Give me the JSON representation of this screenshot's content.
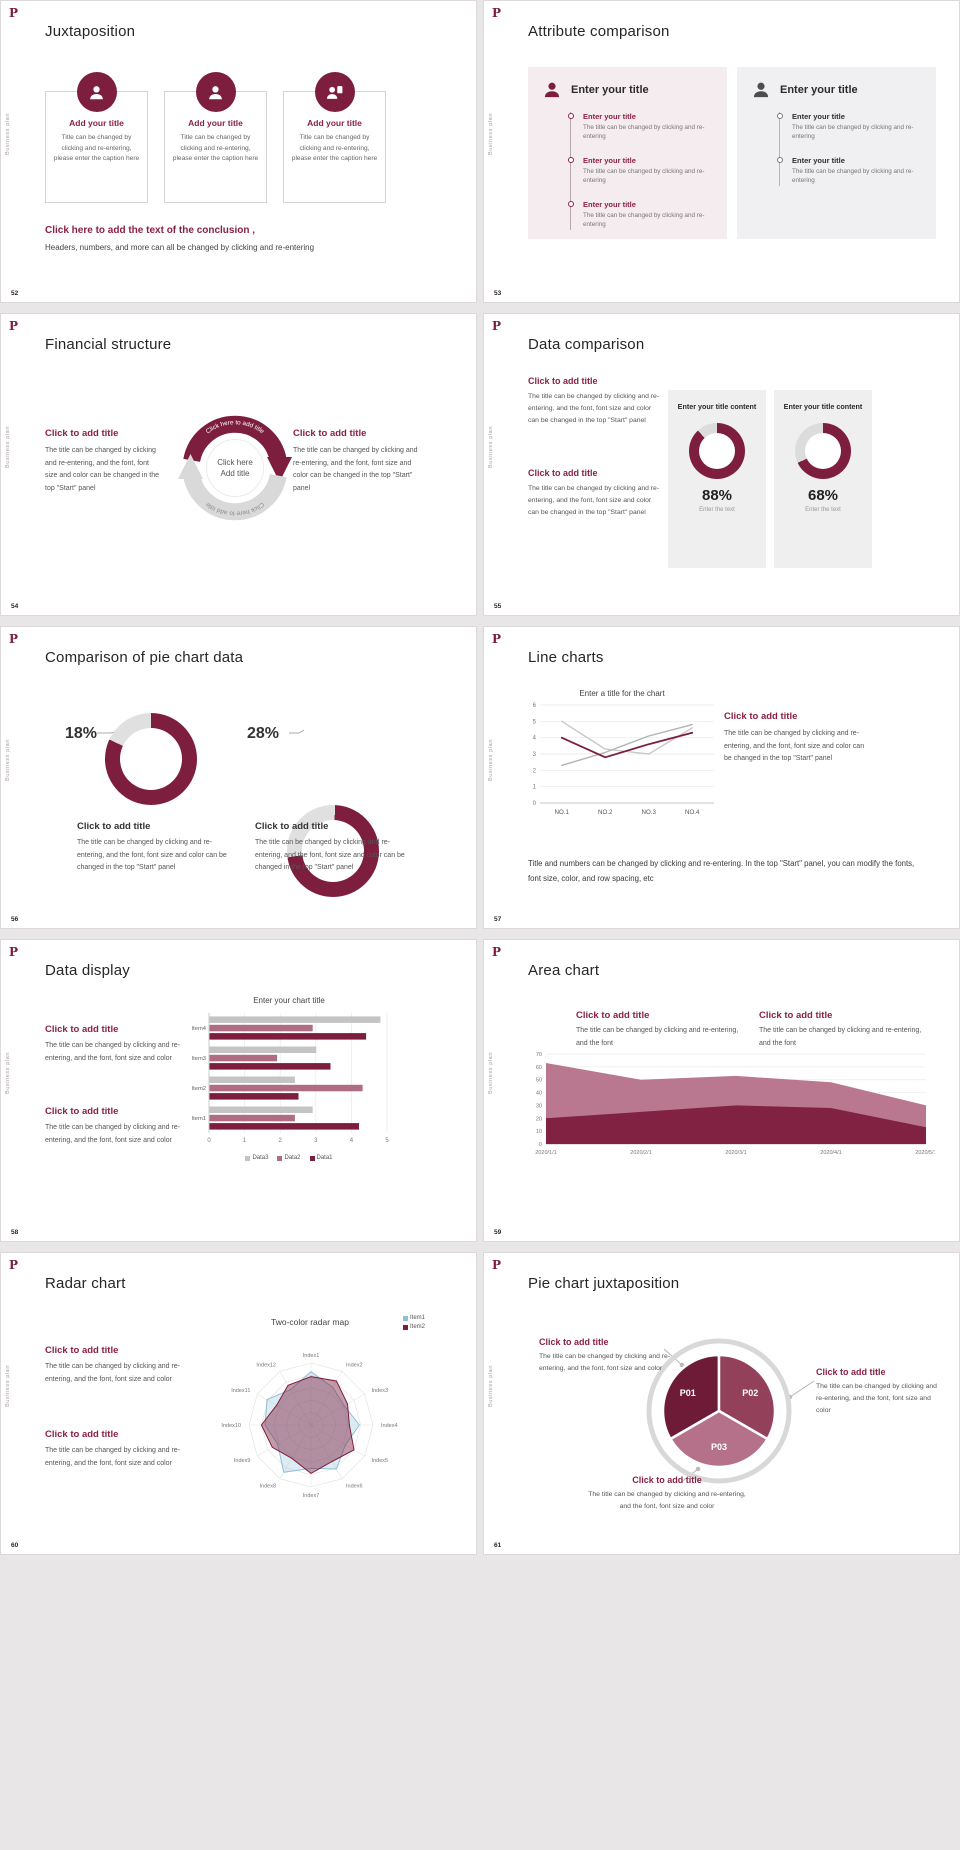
{
  "common": {
    "logo": "P",
    "side_label": "Business plan"
  },
  "colors": {
    "maroon": "#7d1e3e",
    "heading": "#8a2143",
    "mauve": "#b06c85",
    "pink_area": "#b5718a",
    "light_gray": "#dcdcdc",
    "blue": "#8fc0d6"
  },
  "slides": [
    {
      "number": "52",
      "title": "Juxtaposition",
      "cards": [
        {
          "heading": "Add your title",
          "caption": "Title can be changed by clicking and re-entering, please enter the caption here"
        },
        {
          "heading": "Add your title",
          "caption": "Title can be changed by clicking and re-entering, please enter the caption here"
        },
        {
          "heading": "Add your title",
          "caption": "Title can be changed by clicking and re-entering, please enter the caption here"
        }
      ],
      "conclusion_title": "Click here to add the text of the conclusion ,",
      "conclusion_text": "Headers, numbers, and more can all be changed by clicking and re-entering"
    },
    {
      "number": "53",
      "title": "Attribute comparison",
      "panels": [
        {
          "header": "Enter your title",
          "items": [
            {
              "heading": "Enter your title",
              "caption": "The title can be changed by clicking and re-entering"
            },
            {
              "heading": "Enter your title",
              "caption": "The title can be changed by clicking and re-entering"
            },
            {
              "heading": "Enter your title",
              "caption": "The title can be changed by clicking and re-entering"
            }
          ]
        },
        {
          "header": "Enter your title",
          "items": [
            {
              "heading": "Enter your title",
              "caption": "The title can be changed by clicking and re-entering"
            },
            {
              "heading": "Enter your title",
              "caption": "The title can be changed by clicking and re-entering"
            }
          ]
        }
      ]
    },
    {
      "number": "54",
      "title": "Financial structure",
      "left": {
        "heading": "Click to add title",
        "text": "The title can be changed by clicking and re-entering, and the font, font size and color can be changed in the top \"Start\" panel"
      },
      "right": {
        "heading": "Click to add title",
        "text": "The title can be changed by clicking and re-entering, and the font, font size and color can be changed in the top \"Start\" panel"
      },
      "diagram": {
        "center_line1": "Click here",
        "center_line2": "Add title",
        "arc_text": "Click here to add title",
        "arc_text_bottom": "Click here to add title"
      }
    },
    {
      "number": "55",
      "title": "Data comparison",
      "blocks": [
        {
          "heading": "Click to add title",
          "text": "The title can be changed by clicking and re-entering, and the font, font size and color can be changed in the top \"Start\" panel"
        },
        {
          "heading": "Click to add title",
          "text": "The title can be changed by clicking and re-entering, and the font, font size and color can be changed in the top \"Start\" panel"
        }
      ],
      "panels": [
        {
          "header": "Enter your title content",
          "pct": 88,
          "pct_label": "88%",
          "caption": "Enter the text"
        },
        {
          "header": "Enter your title content",
          "pct": 68,
          "pct_label": "68%",
          "caption": "Enter the text"
        }
      ]
    },
    {
      "number": "56",
      "title": "Comparison of pie chart data",
      "groups": [
        {
          "pct": 18,
          "pct_label": "18%",
          "heading": "Click to add title",
          "text": "The title can be changed by clicking and re-entering, and the font, font size and color can be changed in the top \"Start\" panel"
        },
        {
          "pct": 28,
          "pct_label": "28%",
          "heading": "Click to add title",
          "text": "The title can be changed by clicking and re-entering, and the font, font size and color can be changed in the top \"Start\" panel"
        }
      ]
    },
    {
      "number": "57",
      "title": "Line charts",
      "chart": {
        "type": "line",
        "title": "Enter a title for the chart",
        "categories": [
          "NO.1",
          "NO.2",
          "NO.3",
          "NO.4"
        ],
        "ylim": [
          0,
          6
        ],
        "yticks": [
          0,
          1,
          2,
          3,
          4,
          5,
          6
        ],
        "series": [
          {
            "name": "",
            "color": "#c9c9c9",
            "values": [
              5.0,
              3.3,
              3.0,
              4.6
            ]
          },
          {
            "name": "",
            "color": "#b3b3b3",
            "values": [
              2.3,
              3.1,
              4.1,
              4.8
            ]
          },
          {
            "name": "",
            "color": "#7d1e3e",
            "values": [
              4.0,
              2.8,
              3.6,
              4.3
            ]
          }
        ]
      },
      "block": {
        "heading": "Click to add title",
        "text": "The title can be changed by clicking and re-entering, and the font, font size and color can be changed in the top \"Start\" panel"
      },
      "footer": "Title and numbers can be changed by clicking and re-entering. In the top \"Start\" panel, you can modify the fonts, font size, color, and row spacing, etc"
    },
    {
      "number": "58",
      "title": "Data display",
      "blocks": [
        {
          "heading": "Click to add title",
          "text": "The title can be changed by clicking and re-entering, and the font, font size and color"
        },
        {
          "heading": "Click to add title",
          "text": "The title can be changed by clicking and re-entering, and the font, font size and color"
        }
      ],
      "chart": {
        "type": "bar",
        "title": "Enter your chart title",
        "categories": [
          "Item1",
          "Item2",
          "Item3",
          "Item4"
        ],
        "xlim": [
          0,
          5
        ],
        "xticks": [
          0,
          1,
          2,
          3,
          4,
          5
        ],
        "series": [
          {
            "name": "Data3",
            "color": "#c4c4c4",
            "values": [
              2.9,
              2.4,
              3.0,
              4.8
            ]
          },
          {
            "name": "Data2",
            "color": "#b06c85",
            "values": [
              2.4,
              4.3,
              1.9,
              2.9
            ]
          },
          {
            "name": "Data1",
            "color": "#7d1e3e",
            "values": [
              4.2,
              2.5,
              3.4,
              4.4
            ]
          }
        ]
      }
    },
    {
      "number": "59",
      "title": "Area chart",
      "blocks": [
        {
          "heading": "Click to add title",
          "text": "The title can be changed by clicking and re-entering, and the font"
        },
        {
          "heading": "Click to add title",
          "text": "The title can be changed by clicking and re-entering, and the font"
        }
      ],
      "chart": {
        "type": "area",
        "x": [
          "2020/1/1",
          "2020/2/1",
          "2020/3/1",
          "2020/4/1",
          "2020/5/1"
        ],
        "ylim": [
          0,
          70
        ],
        "yticks": [
          0,
          10,
          20,
          30,
          40,
          50,
          60,
          70
        ],
        "series": [
          {
            "name": "",
            "color": "#b5718a",
            "values": [
              63,
              50,
              53,
              48,
              30
            ]
          },
          {
            "name": "",
            "color": "#7d1e3e",
            "values": [
              20,
              25,
              30,
              28,
              13
            ]
          }
        ]
      }
    },
    {
      "number": "60",
      "title": "Radar chart",
      "blocks": [
        {
          "heading": "Click to add title",
          "text": "The title can be changed by clicking and re-entering, and the font, font size and color"
        },
        {
          "heading": "Click to add title",
          "text": "The title can be changed by clicking and re-entering, and the font, font size and color"
        }
      ],
      "chart": {
        "type": "radar",
        "title": "Two-color radar map",
        "axes": [
          "Index1",
          "Index2",
          "Index3",
          "Index4",
          "Index5",
          "Index6",
          "Index7",
          "Index8",
          "Index9",
          "Index10",
          "Index11",
          "Index12"
        ],
        "max": 5,
        "series": [
          {
            "name": "Item1",
            "color": "#8fc0d6",
            "values": [
              4.3,
              3.5,
              3.1,
              3.9,
              3.2,
              4.1,
              3.5,
              4.4,
              3.1,
              3.7,
              4.1,
              3.3
            ]
          },
          {
            "name": "Item2",
            "color": "#7d1e3e",
            "values": [
              3.9,
              4.1,
              3.4,
              3.1,
              4.0,
              3.4,
              3.9,
              3.1,
              3.6,
              4.0,
              3.2,
              3.7
            ]
          }
        ]
      }
    },
    {
      "number": "61",
      "title": "Pie chart juxtaposition",
      "blocks": [
        {
          "heading": "Click to add title",
          "text": "The title can be changed by clicking and re-entering, and the font, font size and color"
        },
        {
          "heading": "Click to add title",
          "text": "The title can be changed by clicking and re-entering, and the font, font size and color"
        },
        {
          "heading": "Click to add title",
          "text": "The title can be changed by clicking and re-entering, and the font, font size and color"
        }
      ],
      "pie": {
        "segments": [
          {
            "label": "P01",
            "color": "#6e1b38"
          },
          {
            "label": "P02",
            "color": "#93405b"
          },
          {
            "label": "P03",
            "color": "#b5718a"
          }
        ]
      }
    }
  ]
}
